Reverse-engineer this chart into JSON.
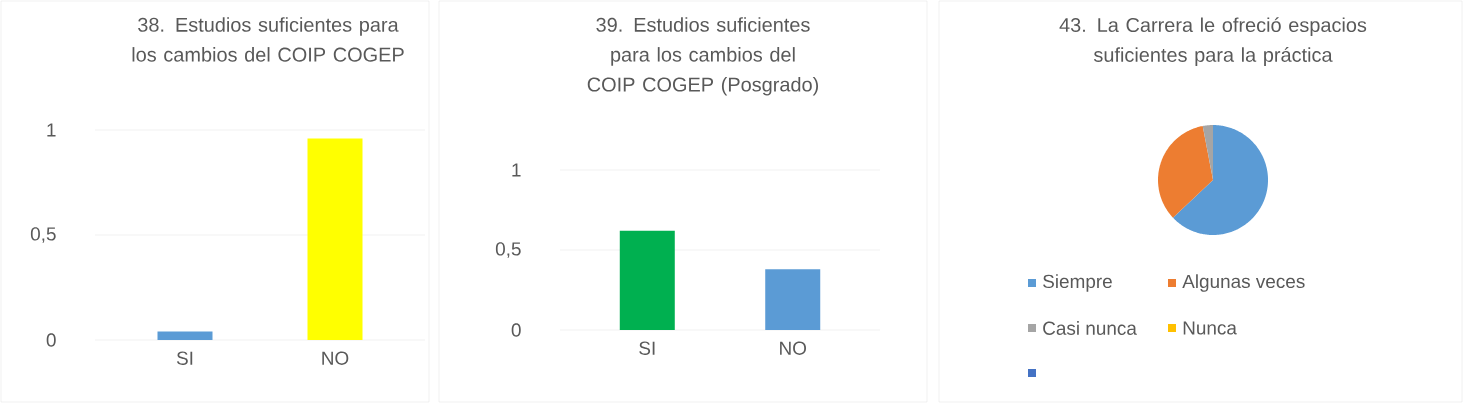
{
  "chart_data": [
    {
      "type": "bar",
      "title": "38. Estudios suficientes para los cambios del COIP COGEP",
      "categories": [
        "SI",
        "NO"
      ],
      "values": [
        0.04,
        0.96
      ],
      "colors": [
        "#5b9bd5",
        "#ffff00"
      ],
      "ylim": [
        0,
        1
      ],
      "yticks": [
        0,
        {
          "value": 0.5,
          "label": "0,5"
        },
        1
      ],
      "grid": "y"
    },
    {
      "type": "bar",
      "title": "39. Estudios suficientes para los cambios del COIP COGEP (Posgrado)",
      "categories": [
        "SI",
        "NO"
      ],
      "values": [
        0.62,
        0.38
      ],
      "colors": [
        "#00b050",
        "#5b9bd5"
      ],
      "ylim": [
        0,
        1
      ],
      "yticks": [
        0,
        {
          "value": 0.5,
          "label": "0,5"
        },
        1
      ],
      "grid": "y"
    },
    {
      "type": "pie",
      "title": "43. La Carrera le ofreció espacios suficientes para la práctica",
      "categories": [
        "Siempre",
        "Algunas veces",
        "Casi nunca",
        "Nunca",
        null
      ],
      "values": [
        63,
        34,
        3,
        0,
        0
      ],
      "colors": [
        "#5b9bd5",
        "#ed7d31",
        "#a5a5a5",
        "#ffc000",
        "#4472c4"
      ],
      "legend": "bottom"
    }
  ]
}
